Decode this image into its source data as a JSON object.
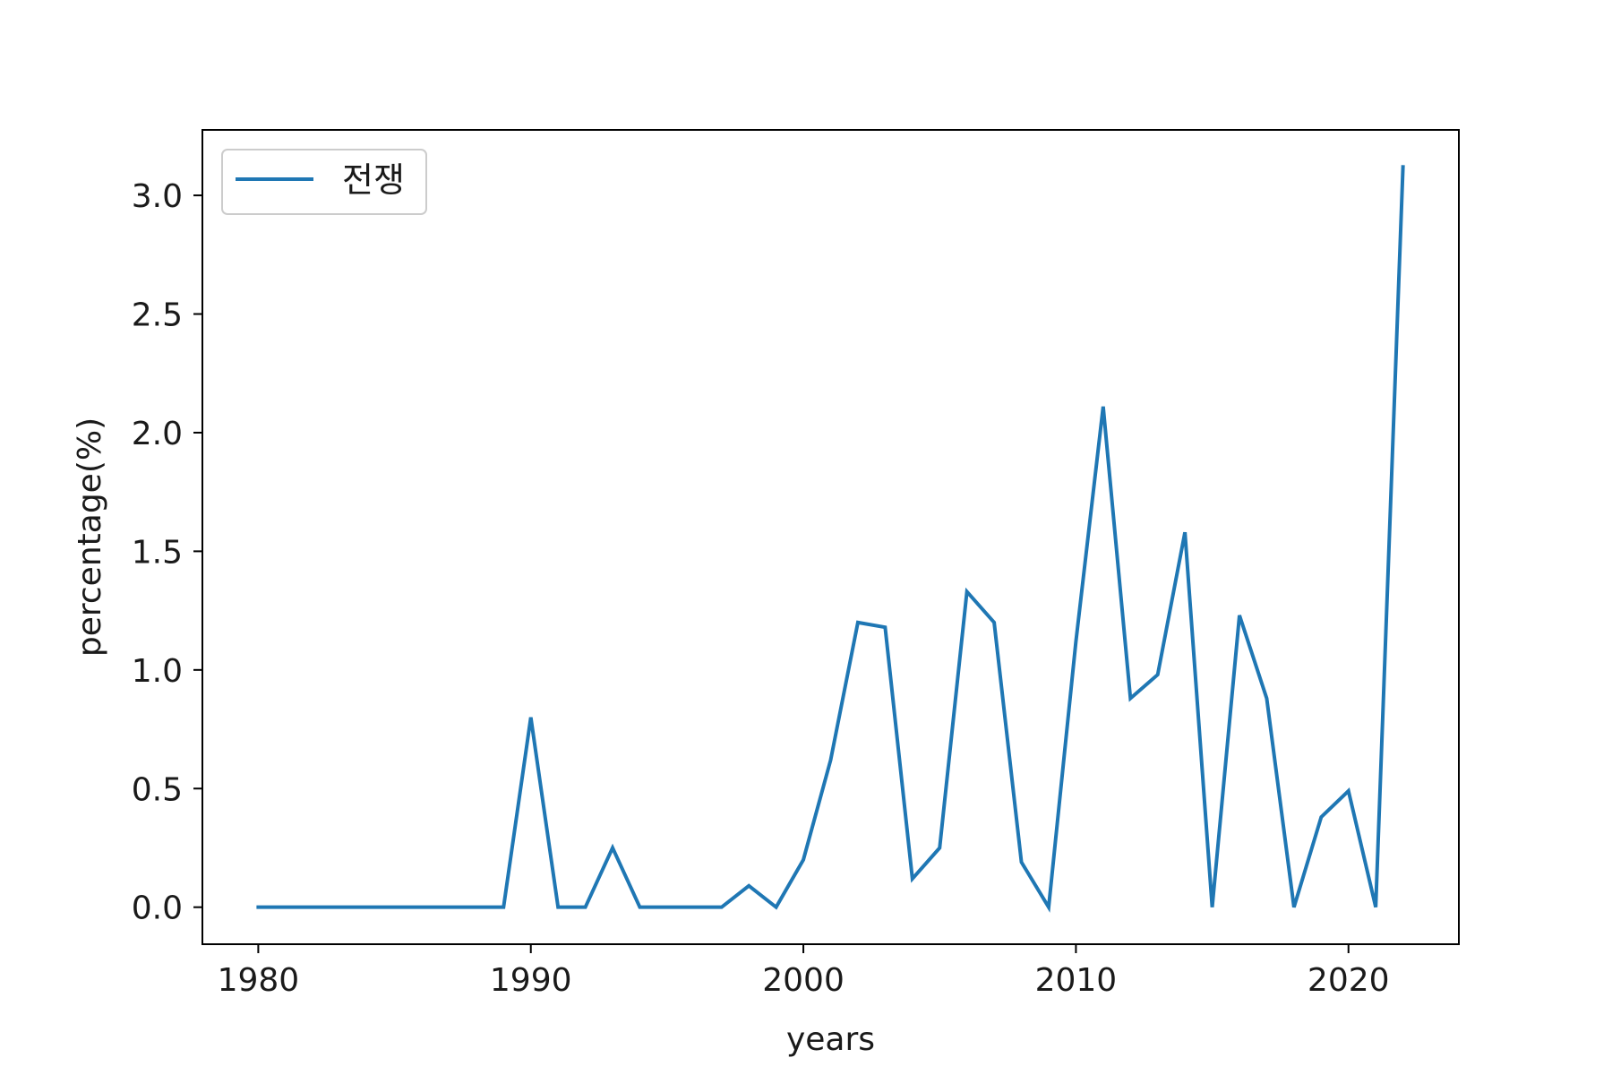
{
  "chart_data": {
    "type": "line",
    "title": "",
    "xlabel": "years",
    "ylabel": "percentage(%)",
    "xlim": [
      1977.95,
      2024.05
    ],
    "ylim": [
      -0.156,
      3.276
    ],
    "xticks": [
      1980,
      1990,
      2000,
      2010,
      2020
    ],
    "xtick_labels": [
      "1980",
      "1990",
      "2000",
      "2010",
      "2020"
    ],
    "yticks": [
      0.0,
      0.5,
      1.0,
      1.5,
      2.0,
      2.5,
      3.0
    ],
    "ytick_labels": [
      "0.0",
      "0.5",
      "1.0",
      "1.5",
      "2.0",
      "2.5",
      "3.0"
    ],
    "grid": false,
    "legend_position": "top-left",
    "series": [
      {
        "name": "전쟁",
        "color": "#1f77b4",
        "x": [
          1980,
          1981,
          1982,
          1983,
          1984,
          1985,
          1986,
          1987,
          1988,
          1989,
          1990,
          1991,
          1992,
          1993,
          1994,
          1995,
          1996,
          1997,
          1998,
          1999,
          2000,
          2001,
          2002,
          2003,
          2004,
          2005,
          2006,
          2007,
          2008,
          2009,
          2010,
          2011,
          2012,
          2013,
          2014,
          2015,
          2016,
          2017,
          2018,
          2019,
          2020,
          2021,
          2022
        ],
        "y": [
          0.0,
          0.0,
          0.0,
          0.0,
          0.0,
          0.0,
          0.0,
          0.0,
          0.0,
          0.0,
          0.8,
          0.0,
          0.0,
          0.25,
          0.0,
          0.0,
          0.0,
          0.0,
          0.09,
          0.0,
          0.2,
          0.62,
          1.2,
          1.18,
          0.12,
          0.25,
          1.33,
          1.2,
          0.19,
          0.0,
          1.12,
          2.11,
          0.88,
          0.98,
          1.58,
          0.0,
          1.23,
          0.88,
          0.0,
          0.38,
          0.49,
          0.0,
          3.12
        ]
      }
    ]
  }
}
